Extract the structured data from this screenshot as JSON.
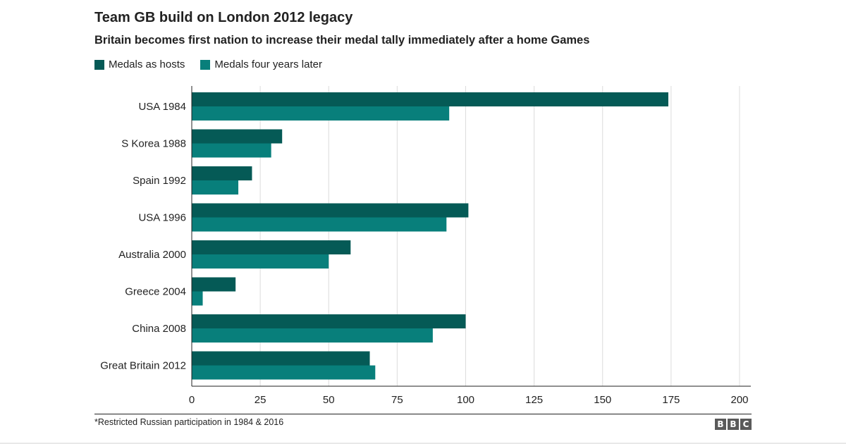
{
  "header": {
    "title": "Team GB build on London 2012 legacy",
    "subtitle": "Britain becomes first nation to increase their medal tally immediately after a home Games"
  },
  "legend": {
    "items": [
      {
        "label": "Medals as hosts",
        "color": "#055a56"
      },
      {
        "label": "Medals four years later",
        "color": "#087f7b"
      }
    ]
  },
  "chart_data": {
    "type": "bar",
    "orientation": "horizontal",
    "title": "Team GB build on London 2012 legacy",
    "subtitle": "Britain becomes first nation to increase their medal tally immediately after a home Games",
    "categories": [
      "USA 1984",
      "S Korea 1988",
      "Spain 1992",
      "USA 1996",
      "Australia 2000",
      "Greece 2004",
      "China 2008",
      "Great Britain 2012"
    ],
    "series": [
      {
        "name": "Medals as hosts",
        "color": "#055a56",
        "values": [
          174,
          33,
          22,
          101,
          58,
          16,
          100,
          65
        ]
      },
      {
        "name": "Medals four years later",
        "color": "#087f7b",
        "values": [
          94,
          29,
          17,
          93,
          50,
          4,
          88,
          67
        ]
      }
    ],
    "xlim": [
      0,
      200
    ],
    "xticks": [
      0,
      25,
      50,
      75,
      100,
      125,
      150,
      175,
      200
    ],
    "grid": true,
    "legend_position": "top-left"
  },
  "footer": {
    "note": "*Restricted Russian participation in 1984 & 2016",
    "logo_letters": [
      "B",
      "B",
      "C"
    ]
  }
}
